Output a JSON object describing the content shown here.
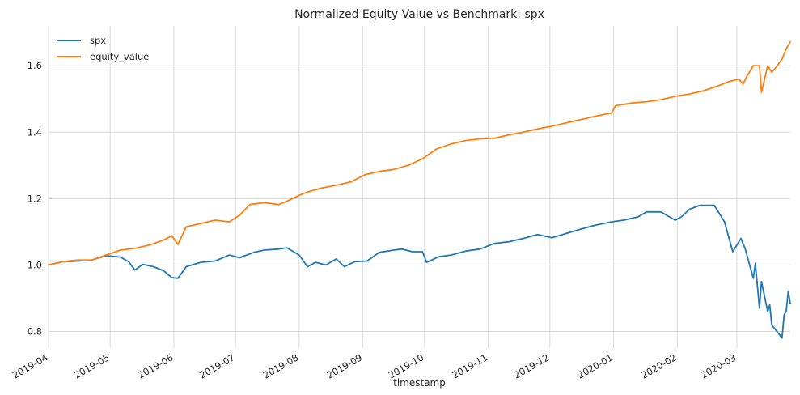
{
  "chart_data": {
    "type": "line",
    "title": "Normalized Equity Value vs Benchmark: spx",
    "xlabel": "timestamp",
    "ylabel": "",
    "x_range": [
      "2019-04-01",
      "2020-03-27"
    ],
    "ylim": [
      0.75,
      1.72
    ],
    "grid": true,
    "legend_position": "top-left",
    "x_ticks": [
      "2019-04",
      "2019-05",
      "2019-06",
      "2019-07",
      "2019-08",
      "2019-09",
      "2019-10",
      "2019-11",
      "2019-12",
      "2020-01",
      "2020-02",
      "2020-03"
    ],
    "y_ticks": [
      "0.8",
      "1.0",
      "1.2",
      "1.4",
      "1.6"
    ],
    "series": [
      {
        "name": "spx",
        "color": "#1f77b4",
        "points": [
          [
            "2019-04-01",
            1.0
          ],
          [
            "2019-04-08",
            1.01
          ],
          [
            "2019-04-15",
            1.012
          ],
          [
            "2019-04-22",
            1.015
          ],
          [
            "2019-04-29",
            1.028
          ],
          [
            "2019-05-06",
            1.024
          ],
          [
            "2019-05-10",
            1.01
          ],
          [
            "2019-05-13",
            0.985
          ],
          [
            "2019-05-17",
            1.002
          ],
          [
            "2019-05-22",
            0.995
          ],
          [
            "2019-05-27",
            0.983
          ],
          [
            "2019-05-31",
            0.962
          ],
          [
            "2019-06-03",
            0.96
          ],
          [
            "2019-06-07",
            0.995
          ],
          [
            "2019-06-14",
            1.008
          ],
          [
            "2019-06-21",
            1.012
          ],
          [
            "2019-06-28",
            1.03
          ],
          [
            "2019-07-03",
            1.022
          ],
          [
            "2019-07-10",
            1.038
          ],
          [
            "2019-07-15",
            1.045
          ],
          [
            "2019-07-22",
            1.048
          ],
          [
            "2019-07-26",
            1.052
          ],
          [
            "2019-08-01",
            1.03
          ],
          [
            "2019-08-05",
            0.995
          ],
          [
            "2019-08-09",
            1.008
          ],
          [
            "2019-08-14",
            1.0
          ],
          [
            "2019-08-19",
            1.018
          ],
          [
            "2019-08-23",
            0.995
          ],
          [
            "2019-08-28",
            1.01
          ],
          [
            "2019-09-03",
            1.012
          ],
          [
            "2019-09-09",
            1.038
          ],
          [
            "2019-09-16",
            1.045
          ],
          [
            "2019-09-20",
            1.048
          ],
          [
            "2019-09-25",
            1.04
          ],
          [
            "2019-09-30",
            1.04
          ],
          [
            "2019-10-02",
            1.008
          ],
          [
            "2019-10-08",
            1.025
          ],
          [
            "2019-10-14",
            1.03
          ],
          [
            "2019-10-21",
            1.042
          ],
          [
            "2019-10-28",
            1.048
          ],
          [
            "2019-11-04",
            1.065
          ],
          [
            "2019-11-11",
            1.07
          ],
          [
            "2019-11-18",
            1.08
          ],
          [
            "2019-11-25",
            1.092
          ],
          [
            "2019-12-02",
            1.082
          ],
          [
            "2019-12-09",
            1.095
          ],
          [
            "2019-12-16",
            1.108
          ],
          [
            "2019-12-23",
            1.12
          ],
          [
            "2019-12-31",
            1.13
          ],
          [
            "2020-01-06",
            1.135
          ],
          [
            "2020-01-13",
            1.145
          ],
          [
            "2020-01-17",
            1.16
          ],
          [
            "2020-01-24",
            1.16
          ],
          [
            "2020-01-31",
            1.135
          ],
          [
            "2020-02-03",
            1.145
          ],
          [
            "2020-02-07",
            1.168
          ],
          [
            "2020-02-12",
            1.18
          ],
          [
            "2020-02-19",
            1.18
          ],
          [
            "2020-02-24",
            1.13
          ],
          [
            "2020-02-28",
            1.04
          ],
          [
            "2020-03-03",
            1.08
          ],
          [
            "2020-03-05",
            1.05
          ],
          [
            "2020-03-09",
            0.96
          ],
          [
            "2020-03-10",
            1.005
          ],
          [
            "2020-03-12",
            0.87
          ],
          [
            "2020-03-13",
            0.95
          ],
          [
            "2020-03-16",
            0.86
          ],
          [
            "2020-03-17",
            0.88
          ],
          [
            "2020-03-18",
            0.82
          ],
          [
            "2020-03-23",
            0.78
          ],
          [
            "2020-03-24",
            0.85
          ],
          [
            "2020-03-25",
            0.86
          ],
          [
            "2020-03-26",
            0.92
          ],
          [
            "2020-03-27",
            0.885
          ]
        ]
      },
      {
        "name": "equity_value",
        "color": "#ff7f0e",
        "points": [
          [
            "2019-04-01",
            1.0
          ],
          [
            "2019-04-08",
            1.01
          ],
          [
            "2019-04-15",
            1.015
          ],
          [
            "2019-04-22",
            1.015
          ],
          [
            "2019-04-29",
            1.03
          ],
          [
            "2019-05-06",
            1.045
          ],
          [
            "2019-05-13",
            1.05
          ],
          [
            "2019-05-20",
            1.06
          ],
          [
            "2019-05-27",
            1.075
          ],
          [
            "2019-05-31",
            1.088
          ],
          [
            "2019-06-03",
            1.062
          ],
          [
            "2019-06-07",
            1.115
          ],
          [
            "2019-06-14",
            1.125
          ],
          [
            "2019-06-21",
            1.135
          ],
          [
            "2019-06-28",
            1.13
          ],
          [
            "2019-07-03",
            1.15
          ],
          [
            "2019-07-08",
            1.182
          ],
          [
            "2019-07-15",
            1.188
          ],
          [
            "2019-07-22",
            1.182
          ],
          [
            "2019-07-26",
            1.192
          ],
          [
            "2019-08-01",
            1.21
          ],
          [
            "2019-08-05",
            1.22
          ],
          [
            "2019-08-12",
            1.232
          ],
          [
            "2019-08-19",
            1.24
          ],
          [
            "2019-08-26",
            1.25
          ],
          [
            "2019-09-02",
            1.272
          ],
          [
            "2019-09-09",
            1.282
          ],
          [
            "2019-09-16",
            1.288
          ],
          [
            "2019-09-23",
            1.3
          ],
          [
            "2019-09-30",
            1.32
          ],
          [
            "2019-10-07",
            1.35
          ],
          [
            "2019-10-14",
            1.365
          ],
          [
            "2019-10-21",
            1.375
          ],
          [
            "2019-10-28",
            1.38
          ],
          [
            "2019-11-04",
            1.382
          ],
          [
            "2019-11-11",
            1.392
          ],
          [
            "2019-11-18",
            1.4
          ],
          [
            "2019-11-25",
            1.41
          ],
          [
            "2019-12-02",
            1.418
          ],
          [
            "2019-12-09",
            1.428
          ],
          [
            "2019-12-16",
            1.438
          ],
          [
            "2019-12-23",
            1.448
          ],
          [
            "2019-12-31",
            1.458
          ],
          [
            "2020-01-02",
            1.48
          ],
          [
            "2020-01-10",
            1.488
          ],
          [
            "2020-01-17",
            1.492
          ],
          [
            "2020-01-24",
            1.498
          ],
          [
            "2020-01-31",
            1.508
          ],
          [
            "2020-02-07",
            1.515
          ],
          [
            "2020-02-14",
            1.525
          ],
          [
            "2020-02-21",
            1.54
          ],
          [
            "2020-02-26",
            1.552
          ],
          [
            "2020-03-02",
            1.56
          ],
          [
            "2020-03-04",
            1.545
          ],
          [
            "2020-03-06",
            1.57
          ],
          [
            "2020-03-09",
            1.6
          ],
          [
            "2020-03-12",
            1.6
          ],
          [
            "2020-03-13",
            1.52
          ],
          [
            "2020-03-16",
            1.6
          ],
          [
            "2020-03-18",
            1.58
          ],
          [
            "2020-03-20",
            1.595
          ],
          [
            "2020-03-23",
            1.62
          ],
          [
            "2020-03-25",
            1.65
          ],
          [
            "2020-03-27",
            1.672
          ]
        ]
      }
    ]
  }
}
